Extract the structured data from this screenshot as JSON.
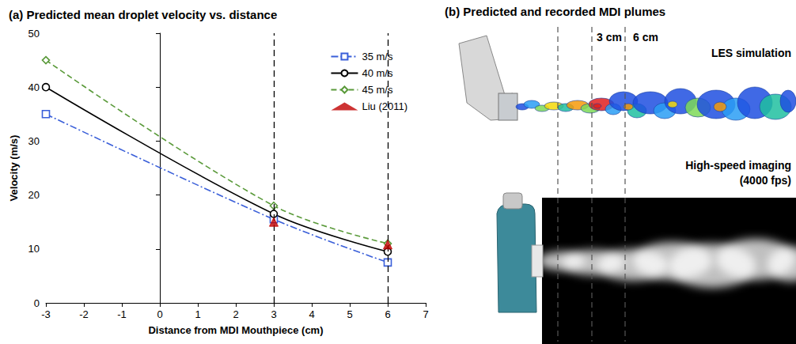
{
  "chart_data": {
    "type": "line",
    "title": "(a) Predicted mean droplet velocity vs. distance",
    "x_label": "Distance from MDI Mouthpiece (cm)",
    "y_label": "Velocity (m/s)",
    "x": [
      -3,
      3,
      6
    ],
    "series": [
      {
        "name": "35 m/s",
        "color": "#3a5fd9",
        "values": [
          35,
          15.5,
          7.5
        ],
        "marker": "square",
        "line_style": "dashdot"
      },
      {
        "name": "40 m/s",
        "color": "#000000",
        "values": [
          40,
          16.5,
          9.5
        ],
        "marker": "circle",
        "line_style": "solid"
      },
      {
        "name": "45 m/s",
        "color": "#5a9a3a",
        "values": [
          45,
          18,
          11
        ],
        "marker": "diamond",
        "line_style": "dashed"
      },
      {
        "name": "Liu (2011)",
        "type": "scatter",
        "color": "#c00000",
        "values": [
          null,
          15,
          10.8
        ],
        "marker": "triangle"
      }
    ],
    "xlim": [
      -3,
      7
    ],
    "xticks": [
      -3,
      -2,
      -1,
      0,
      1,
      2,
      3,
      4,
      5,
      6,
      7
    ],
    "ylim": [
      0,
      50
    ],
    "yticks": [
      0,
      10,
      20,
      30,
      40,
      50
    ],
    "grid": false,
    "legend": "upper right",
    "vlines": [
      3,
      6
    ]
  },
  "panel_b": {
    "title": "(b) Predicted and recorded MDI plumes",
    "distance_labels": [
      "3 cm",
      "6 cm"
    ],
    "top_label": "LES simulation",
    "bottom_label": "High-speed imaging (4000 fps)"
  }
}
